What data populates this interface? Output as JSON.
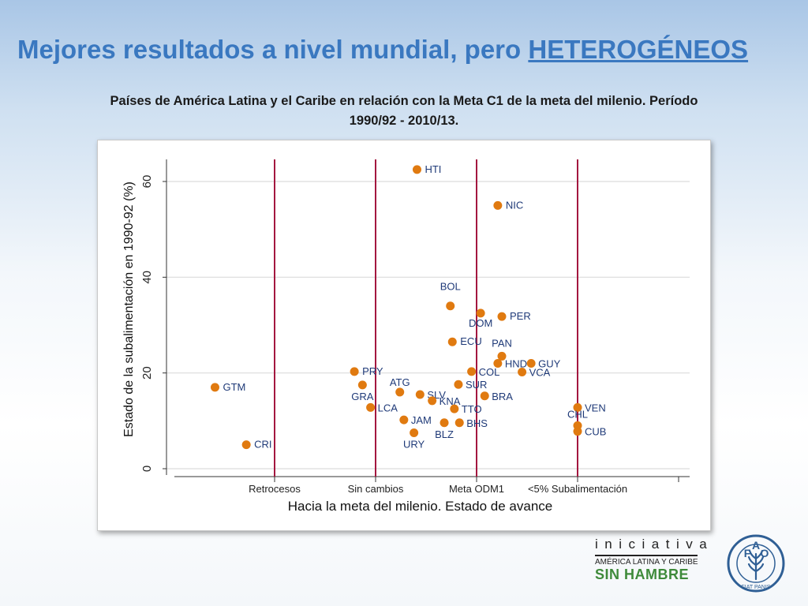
{
  "header": {
    "title_main": "Mejores resultados a nivel mundial, pero ",
    "title_emphasis": "HETEROGÉNEOS",
    "subtitle_line1": "Países de América Latina y el Caribe en relación con la Meta C1 de la meta del milenio. Período",
    "subtitle_line2": "1990/92 - 2010/13."
  },
  "colors": {
    "title": "#3a78c0",
    "point": "#e07a10",
    "vline": "#a3173f",
    "grid": "#dcdcdc",
    "axis": "#333333"
  },
  "chart_data": {
    "type": "scatter",
    "xlabel": "Hacia la meta del milenio. Estado de avance",
    "ylabel": "Estado de la subalimentación en 1990-92 (%)",
    "ylim": [
      0,
      64
    ],
    "yticks": [
      0,
      20,
      40,
      60
    ],
    "xlim": [
      0,
      5.1
    ],
    "grid": "horizontal",
    "categories": [
      {
        "label": "Retrocesos",
        "x": 1
      },
      {
        "label": "Sin cambios",
        "x": 2
      },
      {
        "label": "Meta ODM1",
        "x": 3
      },
      {
        "label": "<5% Subalimentación",
        "x": 4
      }
    ],
    "points": [
      {
        "label": "HTI",
        "x": 2.41,
        "y": 62.5
      },
      {
        "label": "NIC",
        "x": 3.21,
        "y": 55.0
      },
      {
        "label": "BOL",
        "x": 2.74,
        "y": 34.0
      },
      {
        "label": "DOM",
        "x": 3.04,
        "y": 32.5
      },
      {
        "label": "PER",
        "x": 3.25,
        "y": 31.8
      },
      {
        "label": "ECU",
        "x": 2.76,
        "y": 26.5
      },
      {
        "label": "PAN",
        "x": 3.25,
        "y": 23.5
      },
      {
        "label": "HND",
        "x": 3.21,
        "y": 22.0
      },
      {
        "label": "GUY",
        "x": 3.54,
        "y": 22.0
      },
      {
        "label": "VCA",
        "x": 3.45,
        "y": 20.2
      },
      {
        "label": "PRY",
        "x": 1.79,
        "y": 20.3
      },
      {
        "label": "COL",
        "x": 2.95,
        "y": 20.3
      },
      {
        "label": "GRA",
        "x": 1.87,
        "y": 17.5
      },
      {
        "label": "SUR",
        "x": 2.82,
        "y": 17.6
      },
      {
        "label": "GTM",
        "x": 0.41,
        "y": 17.0
      },
      {
        "label": "ATG",
        "x": 2.24,
        "y": 16.0
      },
      {
        "label": "SLV",
        "x": 2.44,
        "y": 15.5
      },
      {
        "label": "BRA",
        "x": 3.08,
        "y": 15.2
      },
      {
        "label": "KNA",
        "x": 2.56,
        "y": 14.2
      },
      {
        "label": "LCA",
        "x": 1.95,
        "y": 12.8
      },
      {
        "label": "TTO",
        "x": 2.78,
        "y": 12.5
      },
      {
        "label": "VEN",
        "x": 4.0,
        "y": 12.8
      },
      {
        "label": "JAM",
        "x": 2.28,
        "y": 10.2
      },
      {
        "label": "BLZ",
        "x": 2.68,
        "y": 9.6
      },
      {
        "label": "BHS",
        "x": 2.83,
        "y": 9.6
      },
      {
        "label": "CHL",
        "x": 4.0,
        "y": 9.0
      },
      {
        "label": "URY",
        "x": 2.38,
        "y": 7.5
      },
      {
        "label": "CUB",
        "x": 4.0,
        "y": 7.8
      },
      {
        "label": "CRI",
        "x": 0.72,
        "y": 5.0
      }
    ]
  },
  "logos": {
    "iniciativa_word": "iniciativa",
    "iniciativa_region": "AMÉRICA LATINA Y CARIBE",
    "iniciativa_hambre": "SIN HAMBRE",
    "fao_word": "FAO",
    "fao_motto": "FIAT PANIS"
  }
}
